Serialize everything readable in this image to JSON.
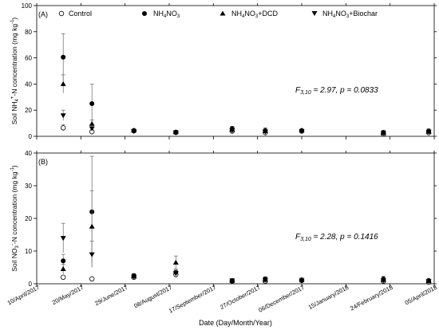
{
  "legend": {
    "items": [
      {
        "label": "Control",
        "marker": "open-circle"
      },
      {
        "label": "NH",
        "sub": "4",
        "rest": "NO",
        "sub2": "3",
        "tail": "",
        "marker": "filled-circle"
      },
      {
        "label": "NH",
        "sub": "4",
        "rest": "NO",
        "sub2": "3",
        "tail": "+DCD",
        "marker": "filled-triangle-up"
      },
      {
        "label": "NH",
        "sub": "4",
        "rest": "NO",
        "sub2": "3",
        "tail": "+Biochar",
        "marker": "filled-triangle-down"
      }
    ]
  },
  "x_axis": {
    "label": "Date (Day/Month/Year)",
    "ticks": [
      "10/April/2017",
      "20/May/2017",
      "29/June/2017",
      "08/August/2017",
      "17/September/2017",
      "27/October/2017",
      "06/December/2017",
      "15/January/2018",
      "24/February/2018",
      "05/April/2018"
    ]
  },
  "chart_data": [
    {
      "type": "scatter",
      "panel_label": "(A)",
      "ylabel_parts": {
        "pre": "Soil NH",
        "sub": "4",
        "sup": "+",
        "mid": "-N concentration (mg kg",
        "sup2": "-1",
        "post": ")"
      },
      "ylim": [
        0,
        100
      ],
      "yticks": [
        0,
        20,
        40,
        60,
        80,
        100
      ],
      "stat": {
        "f": "F",
        "fsub": "3,10",
        "text": " = 2.97, p = 0.0833"
      },
      "x": [
        "2017-05-04",
        "2017-05-30",
        "2017-07-07",
        "2017-08-14",
        "2017-10-04",
        "2017-11-03",
        "2017-12-06",
        "2018-02-18",
        "2018-03-31"
      ],
      "series": [
        {
          "name": "Control",
          "values": [
            6.5,
            3.5,
            4.2,
            3.0,
            4.0,
            2.8,
            4.0,
            1.8,
            2.8
          ],
          "err": [
            2.5,
            1.0,
            0.8,
            0.8,
            1.0,
            0.8,
            0.8,
            0.8,
            0.8
          ]
        },
        {
          "name": "NH4NO3",
          "values": [
            60.5,
            25.0,
            4.5,
            3.2,
            6.0,
            4.5,
            4.5,
            3.0,
            4.0
          ],
          "err": [
            18.0,
            15.0,
            1.2,
            1.0,
            1.5,
            2.0,
            1.0,
            1.5,
            1.8
          ]
        },
        {
          "name": "NH4NO3+DCD",
          "values": [
            40.0,
            9.5,
            4.5,
            3.2,
            5.0,
            4.0,
            4.5,
            2.5,
            3.5
          ],
          "err": [
            7.0,
            3.0,
            1.0,
            0.8,
            1.2,
            1.5,
            1.0,
            1.0,
            1.2
          ]
        },
        {
          "name": "NH4NO3+Biochar",
          "values": [
            16.0,
            6.0,
            4.0,
            3.0,
            4.5,
            3.5,
            4.0,
            2.5,
            3.5
          ],
          "err": [
            4.0,
            2.0,
            0.8,
            0.8,
            1.0,
            1.0,
            0.8,
            0.8,
            1.0
          ]
        }
      ]
    },
    {
      "type": "scatter",
      "panel_label": "(B)",
      "ylabel_parts": {
        "pre": "Soil NO",
        "sub": "3",
        "sup": "-",
        "mid": "-N concentration (mg kg",
        "sup2": "-1",
        "post": ")"
      },
      "ylim": [
        0,
        40
      ],
      "yticks": [
        0,
        10,
        20,
        30,
        40
      ],
      "stat": {
        "f": "F",
        "fsub": "3,10",
        "text": " = 2.28, p = 0.1416"
      },
      "x": [
        "2017-05-04",
        "2017-05-30",
        "2017-07-07",
        "2017-08-14",
        "2017-10-04",
        "2017-11-03",
        "2017-12-06",
        "2018-02-18",
        "2018-03-31"
      ],
      "series": [
        {
          "name": "Control",
          "values": [
            2.0,
            1.5,
            2.0,
            2.8,
            0.8,
            0.8,
            1.0,
            0.8,
            0.5
          ],
          "err": [
            0.3,
            0.3,
            0.3,
            0.5,
            0.2,
            0.2,
            0.3,
            0.3,
            0.2
          ]
        },
        {
          "name": "NH4NO3",
          "values": [
            7.0,
            22.0,
            2.5,
            3.5,
            1.0,
            1.5,
            1.2,
            1.5,
            1.0
          ],
          "err": [
            2.0,
            17.0,
            0.6,
            1.0,
            0.4,
            0.6,
            0.6,
            0.8,
            0.4
          ]
        },
        {
          "name": "NH4NO3+DCD",
          "values": [
            4.5,
            17.5,
            2.3,
            6.5,
            0.9,
            1.2,
            1.2,
            1.2,
            0.8
          ],
          "err": [
            1.5,
            11.0,
            0.5,
            2.0,
            0.3,
            0.4,
            0.5,
            0.5,
            0.3
          ]
        },
        {
          "name": "NH4NO3+Biochar",
          "values": [
            14.0,
            9.0,
            2.2,
            3.2,
            1.0,
            1.2,
            1.0,
            1.0,
            0.8
          ],
          "err": [
            4.5,
            4.0,
            0.5,
            1.0,
            0.3,
            0.4,
            0.4,
            0.4,
            0.3
          ]
        }
      ]
    }
  ]
}
